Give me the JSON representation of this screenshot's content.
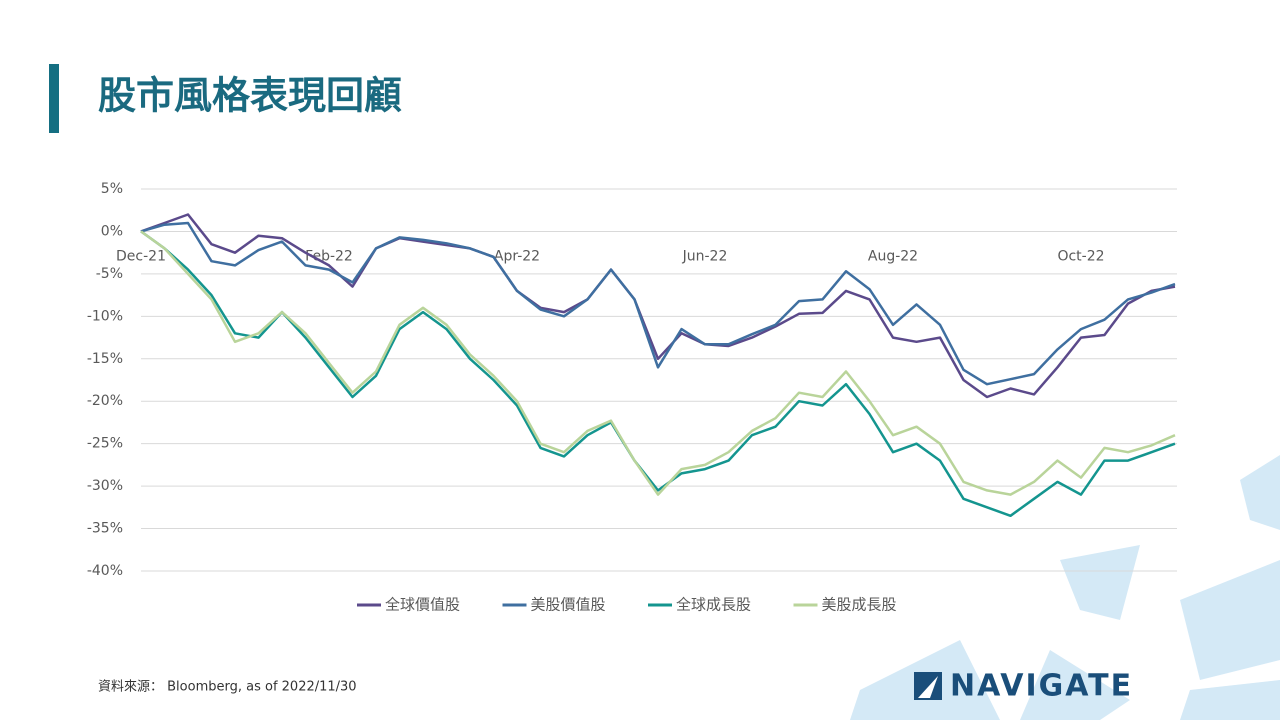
{
  "page": {
    "title": "股市風格表現回顧",
    "source": "資料來源： Bloomberg, as of 2022/11/30",
    "logo": "NAVIGATE"
  },
  "chart_data": {
    "type": "line",
    "categories": [
      "Dec-21",
      null,
      null,
      null,
      null,
      null,
      null,
      null,
      "Feb-22",
      null,
      null,
      null,
      null,
      null,
      null,
      null,
      "Apr-22",
      null,
      null,
      null,
      null,
      null,
      null,
      null,
      "Jun-22",
      null,
      null,
      null,
      null,
      null,
      null,
      null,
      "Aug-22",
      null,
      null,
      null,
      null,
      null,
      null,
      null,
      "Oct-22",
      null,
      null,
      null,
      null
    ],
    "series": [
      {
        "name": "全球價值股",
        "color": "#5b4a8b",
        "values": [
          0,
          1,
          2,
          -1.5,
          -2.5,
          -0.5,
          -0.8,
          -2.5,
          -4,
          -6.5,
          -2,
          -0.8,
          -1.2,
          -1.6,
          -2,
          -3,
          -7,
          -9,
          -9.5,
          -8,
          -4.5,
          -8,
          -15,
          -12,
          -13.3,
          -13.5,
          -12.5,
          -11.2,
          -9.7,
          -9.6,
          -7,
          -8,
          -12.5,
          -13,
          -12.5,
          -17.5,
          -19.5,
          -18.5,
          -19.2,
          -16,
          -12.5,
          -12.2,
          -8.5,
          -7,
          -6.5
        ]
      },
      {
        "name": "美股價值股",
        "color": "#3f6fa0",
        "values": [
          0,
          0.8,
          1,
          -3.5,
          -4,
          -2.2,
          -1.2,
          -4,
          -4.5,
          -6,
          -2,
          -0.7,
          -1,
          -1.4,
          -2,
          -3,
          -7,
          -9.2,
          -10,
          -8,
          -4.5,
          -8,
          -16,
          -11.5,
          -13.3,
          -13.3,
          -12.1,
          -11,
          -8.2,
          -8,
          -4.7,
          -6.8,
          -11,
          -8.6,
          -11,
          -16.3,
          -18,
          -17.4,
          -16.8,
          -13.9,
          -11.5,
          -10.4,
          -8,
          -7.2,
          -6.2
        ]
      },
      {
        "name": "全球成長股",
        "color": "#14958f",
        "values": [
          0,
          -2,
          -4.5,
          -7.5,
          -12,
          -12.5,
          -9.5,
          -12.5,
          -16,
          -19.5,
          -17,
          -11.5,
          -9.5,
          -11.5,
          -15,
          -17.5,
          -20.5,
          -25.5,
          -26.5,
          -24,
          -22.5,
          -27,
          -30.5,
          -28.5,
          -28,
          -27,
          -24,
          -23,
          -20,
          -20.5,
          -18,
          -21.5,
          -26,
          -25,
          -27,
          -31.5,
          -32.5,
          -33.5,
          -31.5,
          -29.5,
          -31,
          -27,
          -27,
          -26,
          -25
        ]
      },
      {
        "name": "美股成長股",
        "color": "#b9d49a",
        "values": [
          0,
          -2,
          -5,
          -8,
          -13,
          -12,
          -9.5,
          -12,
          -15.5,
          -19,
          -16.5,
          -11,
          -9,
          -11,
          -14.5,
          -17,
          -20,
          -25,
          -26,
          -23.5,
          -22.3,
          -27,
          -31,
          -28,
          -27.5,
          -26,
          -23.5,
          -22,
          -19,
          -19.5,
          -16.5,
          -20,
          -24,
          -23,
          -25,
          -29.5,
          -30.5,
          -31,
          -29.5,
          -27,
          -29,
          -25.5,
          -26,
          -25.2,
          -24
        ]
      }
    ],
    "ylim": [
      -40,
      5
    ],
    "yticks": [
      {
        "value": 5,
        "label": "5%"
      },
      {
        "value": 0,
        "label": "0%"
      },
      {
        "value": -5,
        "label": "-5%"
      },
      {
        "value": -10,
        "label": "-10%"
      },
      {
        "value": -15,
        "label": "-15%"
      },
      {
        "value": -20,
        "label": "-20%"
      },
      {
        "value": -25,
        "label": "-25%"
      },
      {
        "value": -30,
        "label": "-30%"
      },
      {
        "value": -35,
        "label": "-35%"
      },
      {
        "value": -40,
        "label": "-40%"
      }
    ],
    "grid": true
  }
}
